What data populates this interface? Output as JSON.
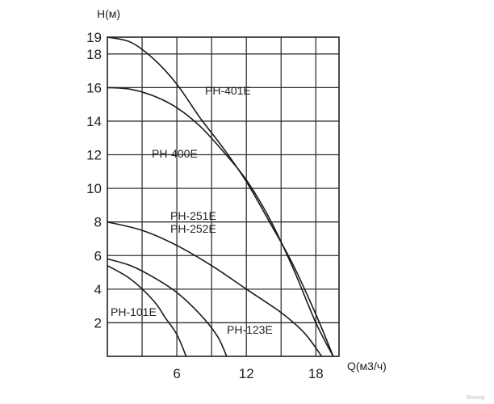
{
  "chart_data": {
    "type": "line",
    "ylabel": "H(м)",
    "xlabel": "Q(м3/ч)",
    "xlim": [
      0,
      20
    ],
    "ylim": [
      0,
      19
    ],
    "x_ticks": [
      6,
      12,
      18
    ],
    "y_ticks": [
      2,
      4,
      6,
      8,
      10,
      12,
      14,
      16,
      18,
      19
    ],
    "x_grid": [
      3,
      6,
      9,
      12,
      15,
      18
    ],
    "y_grid": [
      2,
      4,
      6,
      8,
      10,
      12,
      14,
      16,
      18
    ],
    "grid": true,
    "series": [
      {
        "name": "PH-401E",
        "points": [
          [
            0,
            19
          ],
          [
            2,
            18.7
          ],
          [
            4,
            17.7
          ],
          [
            6,
            16.2
          ],
          [
            8,
            14.2
          ],
          [
            10,
            12.4
          ],
          [
            12,
            10.4
          ],
          [
            14,
            8
          ],
          [
            16,
            5.5
          ],
          [
            18,
            2.5
          ],
          [
            19.5,
            0
          ]
        ]
      },
      {
        "name": "PH-400E",
        "points": [
          [
            0,
            16
          ],
          [
            2,
            15.9
          ],
          [
            4,
            15.5
          ],
          [
            6,
            14.8
          ],
          [
            8,
            13.7
          ],
          [
            10,
            12.2
          ],
          [
            12,
            10.5
          ],
          [
            14,
            8.2
          ],
          [
            16,
            5.3
          ],
          [
            18,
            2
          ],
          [
            19.5,
            0
          ]
        ]
      },
      {
        "name": "PH-251E PH-252E",
        "points": [
          [
            0,
            8
          ],
          [
            3,
            7.5
          ],
          [
            6,
            6.6
          ],
          [
            9,
            5.4
          ],
          [
            12,
            4
          ],
          [
            15,
            2.6
          ],
          [
            17,
            1.4
          ],
          [
            18.5,
            0
          ]
        ]
      },
      {
        "name": "PH-123E",
        "points": [
          [
            0,
            5.8
          ],
          [
            2,
            5.4
          ],
          [
            4,
            4.7
          ],
          [
            6,
            3.8
          ],
          [
            8,
            2.5
          ],
          [
            9.5,
            1.2
          ],
          [
            10.3,
            0
          ]
        ]
      },
      {
        "name": "PH-101E",
        "points": [
          [
            0,
            5.4
          ],
          [
            2,
            4.6
          ],
          [
            4,
            3.3
          ],
          [
            5,
            2.3
          ],
          [
            6,
            1.3
          ],
          [
            6.8,
            0
          ]
        ]
      }
    ],
    "labels": [
      "PH-401E",
      "PH-400E",
      "PH-251E",
      "PH-252E",
      "PH-123E",
      "PH-101E"
    ]
  },
  "watermark": "Волгор"
}
